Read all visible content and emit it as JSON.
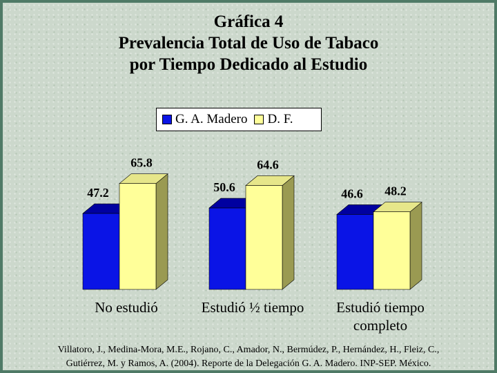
{
  "title_lines": [
    "Gráfica 4",
    "Prevalencia Total de Uso de Tabaco",
    "por Tiempo Dedicado al Estudio"
  ],
  "citation_lines": [
    "Villatoro, J., Medina-Mora, M.E., Rojano, C., Amador, N., Bermúdez, P., Hernández, H., Fleiz, C.,",
    "Gutiérrez, M. y Ramos, A. (2004). Reporte de la Delegación G. A. Madero. INP-SEP. México."
  ],
  "colors": {
    "gam_front": "#0a14e6",
    "gam_top": "#0000a0",
    "gam_side": "#00008c",
    "df_front": "#ffff99",
    "df_top": "#e6e68a",
    "df_side": "#9a9a52"
  },
  "chart_data": {
    "type": "bar",
    "categories": [
      "No estudió",
      "Estudió ½ tiempo",
      "Estudió tiempo completo"
    ],
    "category_lines": [
      [
        "No estudió"
      ],
      [
        "Estudió ½ tiempo"
      ],
      [
        "Estudió tiempo",
        "completo"
      ]
    ],
    "series": [
      {
        "name": "G. A. Madero",
        "values": [
          47.2,
          50.6,
          46.6
        ]
      },
      {
        "name": "D. F.",
        "values": [
          65.8,
          64.6,
          48.2
        ]
      }
    ],
    "ylim": [
      0,
      100
    ],
    "legend": "top-center",
    "grid": false,
    "three_d": true
  }
}
